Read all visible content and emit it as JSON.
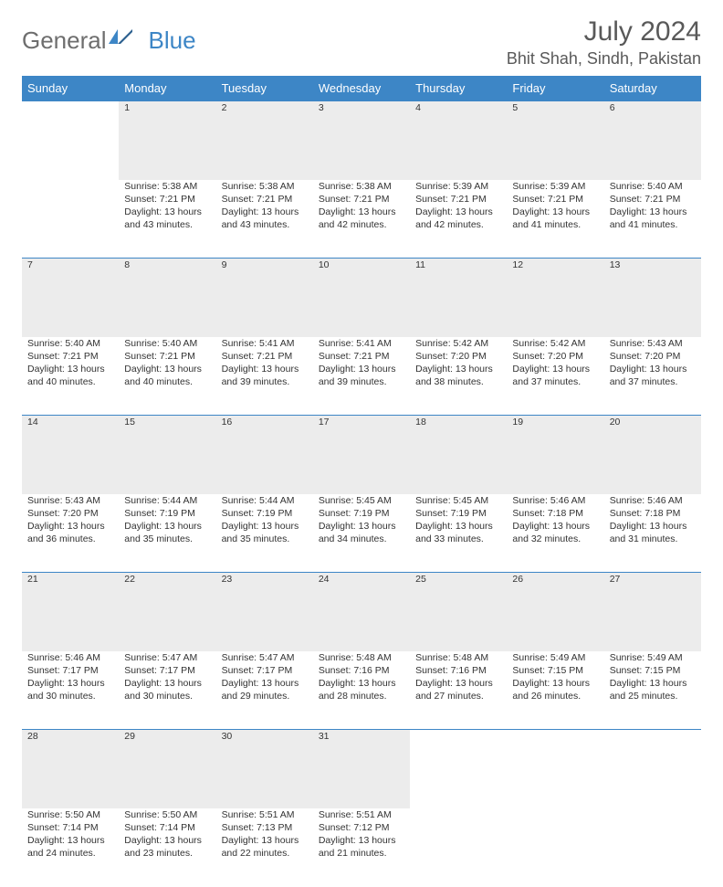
{
  "brand": {
    "word1": "General",
    "word2": "Blue"
  },
  "title": "July 2024",
  "location": "Bhit Shah, Sindh, Pakistan",
  "colors": {
    "header_bg": "#3d86c6",
    "header_text": "#ffffff",
    "daynum_bg": "#ececec",
    "border": "#3d86c6",
    "text": "#333333",
    "muted": "#595959",
    "logo_gray": "#6e6e6e"
  },
  "weekdays": [
    "Sunday",
    "Monday",
    "Tuesday",
    "Wednesday",
    "Thursday",
    "Friday",
    "Saturday"
  ],
  "grid": [
    [
      null,
      {
        "n": "1",
        "sr": "Sunrise: 5:38 AM",
        "ss": "Sunset: 7:21 PM",
        "d1": "Daylight: 13 hours",
        "d2": "and 43 minutes."
      },
      {
        "n": "2",
        "sr": "Sunrise: 5:38 AM",
        "ss": "Sunset: 7:21 PM",
        "d1": "Daylight: 13 hours",
        "d2": "and 43 minutes."
      },
      {
        "n": "3",
        "sr": "Sunrise: 5:38 AM",
        "ss": "Sunset: 7:21 PM",
        "d1": "Daylight: 13 hours",
        "d2": "and 42 minutes."
      },
      {
        "n": "4",
        "sr": "Sunrise: 5:39 AM",
        "ss": "Sunset: 7:21 PM",
        "d1": "Daylight: 13 hours",
        "d2": "and 42 minutes."
      },
      {
        "n": "5",
        "sr": "Sunrise: 5:39 AM",
        "ss": "Sunset: 7:21 PM",
        "d1": "Daylight: 13 hours",
        "d2": "and 41 minutes."
      },
      {
        "n": "6",
        "sr": "Sunrise: 5:40 AM",
        "ss": "Sunset: 7:21 PM",
        "d1": "Daylight: 13 hours",
        "d2": "and 41 minutes."
      }
    ],
    [
      {
        "n": "7",
        "sr": "Sunrise: 5:40 AM",
        "ss": "Sunset: 7:21 PM",
        "d1": "Daylight: 13 hours",
        "d2": "and 40 minutes."
      },
      {
        "n": "8",
        "sr": "Sunrise: 5:40 AM",
        "ss": "Sunset: 7:21 PM",
        "d1": "Daylight: 13 hours",
        "d2": "and 40 minutes."
      },
      {
        "n": "9",
        "sr": "Sunrise: 5:41 AM",
        "ss": "Sunset: 7:21 PM",
        "d1": "Daylight: 13 hours",
        "d2": "and 39 minutes."
      },
      {
        "n": "10",
        "sr": "Sunrise: 5:41 AM",
        "ss": "Sunset: 7:21 PM",
        "d1": "Daylight: 13 hours",
        "d2": "and 39 minutes."
      },
      {
        "n": "11",
        "sr": "Sunrise: 5:42 AM",
        "ss": "Sunset: 7:20 PM",
        "d1": "Daylight: 13 hours",
        "d2": "and 38 minutes."
      },
      {
        "n": "12",
        "sr": "Sunrise: 5:42 AM",
        "ss": "Sunset: 7:20 PM",
        "d1": "Daylight: 13 hours",
        "d2": "and 37 minutes."
      },
      {
        "n": "13",
        "sr": "Sunrise: 5:43 AM",
        "ss": "Sunset: 7:20 PM",
        "d1": "Daylight: 13 hours",
        "d2": "and 37 minutes."
      }
    ],
    [
      {
        "n": "14",
        "sr": "Sunrise: 5:43 AM",
        "ss": "Sunset: 7:20 PM",
        "d1": "Daylight: 13 hours",
        "d2": "and 36 minutes."
      },
      {
        "n": "15",
        "sr": "Sunrise: 5:44 AM",
        "ss": "Sunset: 7:19 PM",
        "d1": "Daylight: 13 hours",
        "d2": "and 35 minutes."
      },
      {
        "n": "16",
        "sr": "Sunrise: 5:44 AM",
        "ss": "Sunset: 7:19 PM",
        "d1": "Daylight: 13 hours",
        "d2": "and 35 minutes."
      },
      {
        "n": "17",
        "sr": "Sunrise: 5:45 AM",
        "ss": "Sunset: 7:19 PM",
        "d1": "Daylight: 13 hours",
        "d2": "and 34 minutes."
      },
      {
        "n": "18",
        "sr": "Sunrise: 5:45 AM",
        "ss": "Sunset: 7:19 PM",
        "d1": "Daylight: 13 hours",
        "d2": "and 33 minutes."
      },
      {
        "n": "19",
        "sr": "Sunrise: 5:46 AM",
        "ss": "Sunset: 7:18 PM",
        "d1": "Daylight: 13 hours",
        "d2": "and 32 minutes."
      },
      {
        "n": "20",
        "sr": "Sunrise: 5:46 AM",
        "ss": "Sunset: 7:18 PM",
        "d1": "Daylight: 13 hours",
        "d2": "and 31 minutes."
      }
    ],
    [
      {
        "n": "21",
        "sr": "Sunrise: 5:46 AM",
        "ss": "Sunset: 7:17 PM",
        "d1": "Daylight: 13 hours",
        "d2": "and 30 minutes."
      },
      {
        "n": "22",
        "sr": "Sunrise: 5:47 AM",
        "ss": "Sunset: 7:17 PM",
        "d1": "Daylight: 13 hours",
        "d2": "and 30 minutes."
      },
      {
        "n": "23",
        "sr": "Sunrise: 5:47 AM",
        "ss": "Sunset: 7:17 PM",
        "d1": "Daylight: 13 hours",
        "d2": "and 29 minutes."
      },
      {
        "n": "24",
        "sr": "Sunrise: 5:48 AM",
        "ss": "Sunset: 7:16 PM",
        "d1": "Daylight: 13 hours",
        "d2": "and 28 minutes."
      },
      {
        "n": "25",
        "sr": "Sunrise: 5:48 AM",
        "ss": "Sunset: 7:16 PM",
        "d1": "Daylight: 13 hours",
        "d2": "and 27 minutes."
      },
      {
        "n": "26",
        "sr": "Sunrise: 5:49 AM",
        "ss": "Sunset: 7:15 PM",
        "d1": "Daylight: 13 hours",
        "d2": "and 26 minutes."
      },
      {
        "n": "27",
        "sr": "Sunrise: 5:49 AM",
        "ss": "Sunset: 7:15 PM",
        "d1": "Daylight: 13 hours",
        "d2": "and 25 minutes."
      }
    ],
    [
      {
        "n": "28",
        "sr": "Sunrise: 5:50 AM",
        "ss": "Sunset: 7:14 PM",
        "d1": "Daylight: 13 hours",
        "d2": "and 24 minutes."
      },
      {
        "n": "29",
        "sr": "Sunrise: 5:50 AM",
        "ss": "Sunset: 7:14 PM",
        "d1": "Daylight: 13 hours",
        "d2": "and 23 minutes."
      },
      {
        "n": "30",
        "sr": "Sunrise: 5:51 AM",
        "ss": "Sunset: 7:13 PM",
        "d1": "Daylight: 13 hours",
        "d2": "and 22 minutes."
      },
      {
        "n": "31",
        "sr": "Sunrise: 5:51 AM",
        "ss": "Sunset: 7:12 PM",
        "d1": "Daylight: 13 hours",
        "d2": "and 21 minutes."
      },
      null,
      null,
      null
    ]
  ]
}
